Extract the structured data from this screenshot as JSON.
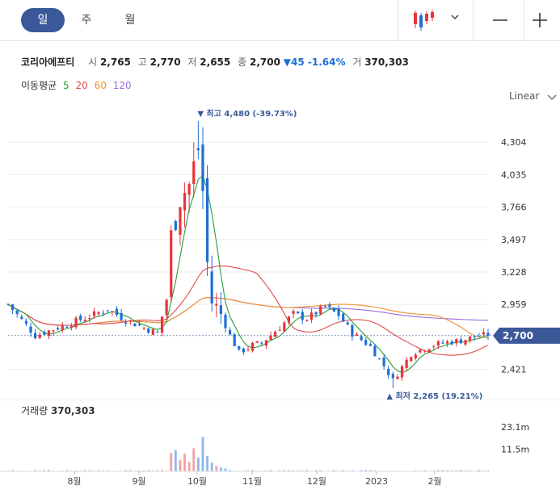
{
  "tabs": [
    {
      "label": "일",
      "active": true
    },
    {
      "label": "주",
      "active": false
    },
    {
      "label": "월",
      "active": false
    }
  ],
  "toolbar": {
    "chart_type_icon": "candlestick-icon",
    "dropdown_icon": "chevron-down-icon",
    "zoom_out_icon": "minus-icon",
    "zoom_in_icon": "plus-icon"
  },
  "quote": {
    "name": "코리아에프티",
    "open_label": "시",
    "open": "2,765",
    "high_label": "고",
    "high": "2,770",
    "low_label": "저",
    "low": "2,655",
    "close_label": "종",
    "close": "2,700",
    "change": "▼45 -1.64%",
    "volume_label": "거",
    "volume": "370,303"
  },
  "moving_average": {
    "label": "이동평균",
    "periods": [
      {
        "value": "5",
        "color": "#2a9d3a"
      },
      {
        "value": "20",
        "color": "#e24a4a"
      },
      {
        "value": "60",
        "color": "#f0902a"
      },
      {
        "value": "120",
        "color": "#9b6bdc"
      }
    ]
  },
  "scale_mode": "Linear",
  "colors": {
    "up": "#e8343c",
    "down": "#1e6fd6",
    "accent": "#3b5998"
  },
  "chart_data": [
    {
      "type": "candlestick",
      "y_ticks": [
        2421,
        2959,
        3228,
        3497,
        3766,
        4035,
        4304
      ],
      "y_tick_labels": [
        "2,421",
        "2,959",
        "3,228",
        "3,497",
        "3,766",
        "4,035",
        "4,304"
      ],
      "ylim": [
        2170,
        4580
      ],
      "x_labels": [
        "8월",
        "9월",
        "10월",
        "11월",
        "12월",
        "2023",
        "2월"
      ],
      "current_price": 2700,
      "current_price_label": "2,700",
      "high_annotation": {
        "text": "최고 4,480 (-39.73%)",
        "value": 4480
      },
      "low_annotation": {
        "text": "최저 2,265 (19.21%)",
        "value": 2265
      },
      "close_path": [
        [
          0,
          2960
        ],
        [
          6,
          2700
        ],
        [
          12,
          2780
        ],
        [
          18,
          2860
        ],
        [
          22,
          2920
        ],
        [
          26,
          2830
        ],
        [
          31,
          2750
        ],
        [
          33,
          2720
        ],
        [
          35,
          3000
        ],
        [
          36,
          3520
        ],
        [
          38,
          3850
        ],
        [
          40,
          3950
        ],
        [
          42,
          4250
        ],
        [
          43,
          3900
        ],
        [
          44,
          3300
        ],
        [
          45,
          2980
        ],
        [
          47,
          2880
        ],
        [
          49,
          2700
        ],
        [
          51,
          2560
        ],
        [
          54,
          2620
        ],
        [
          56,
          2640
        ],
        [
          60,
          2770
        ],
        [
          63,
          2880
        ],
        [
          66,
          2840
        ],
        [
          70,
          2940
        ],
        [
          73,
          2870
        ],
        [
          76,
          2720
        ],
        [
          80,
          2610
        ],
        [
          83,
          2450
        ],
        [
          85,
          2330
        ],
        [
          87,
          2440
        ],
        [
          89,
          2550
        ],
        [
          92,
          2600
        ],
        [
          96,
          2640
        ],
        [
          100,
          2660
        ],
        [
          104,
          2700
        ],
        [
          106,
          2700
        ]
      ],
      "grid": true,
      "legend": "none"
    },
    {
      "type": "bar",
      "title": "거래량",
      "current_volume": "370,303",
      "y_ticks": [
        11.5,
        23.1
      ],
      "y_tick_labels": [
        "11.5m",
        "23.1m"
      ],
      "ylim": [
        0,
        26
      ],
      "spikes": [
        {
          "day": 36,
          "value": 9.5
        },
        {
          "day": 37,
          "value": 11.0
        },
        {
          "day": 38,
          "value": 6.0
        },
        {
          "day": 39,
          "value": 9.2
        },
        {
          "day": 40,
          "value": 4.8
        },
        {
          "day": 41,
          "value": 12.0
        },
        {
          "day": 42,
          "value": 7.2
        },
        {
          "day": 43,
          "value": 18.0
        },
        {
          "day": 44,
          "value": 8.0
        },
        {
          "day": 45,
          "value": 4.5
        },
        {
          "day": 46,
          "value": 2.8
        },
        {
          "day": 47,
          "value": 2.0
        },
        {
          "day": 48,
          "value": 1.5
        }
      ]
    }
  ]
}
